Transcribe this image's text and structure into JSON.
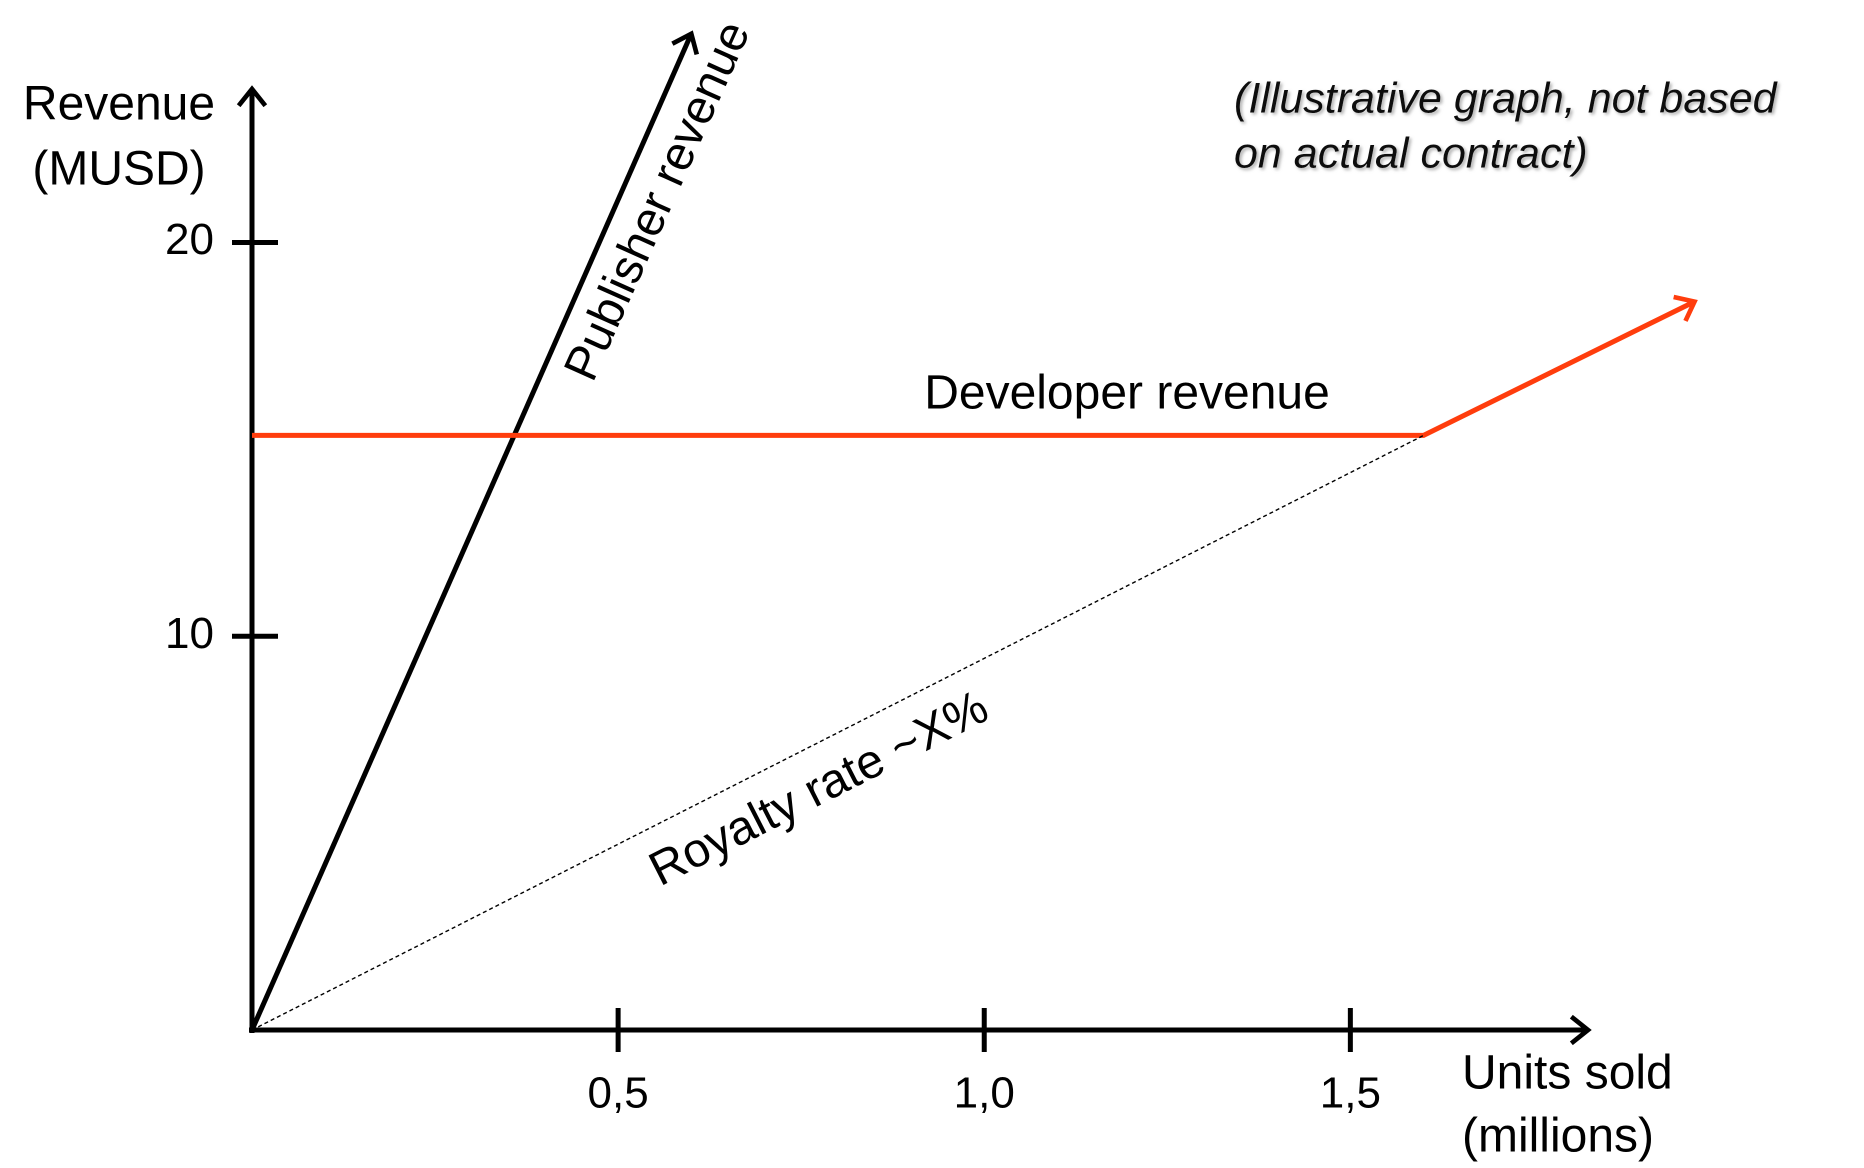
{
  "chart_data": {
    "type": "line",
    "ylabel": [
      "Revenue",
      "(MUSD)"
    ],
    "xlabel": [
      "Units sold",
      "(millions)"
    ],
    "annotation": [
      "(Illustrative graph, not based",
      "on actual contract)"
    ],
    "xlim": [
      0,
      1.83
    ],
    "ylim": [
      0,
      24
    ],
    "xticks": [
      {
        "value": 0.5,
        "label": "0,5"
      },
      {
        "value": 1.0,
        "label": "1,0"
      },
      {
        "value": 1.5,
        "label": "1,5"
      }
    ],
    "yticks": [
      10,
      20
    ],
    "series": [
      {
        "name": "Publisher revenue",
        "color": "#000000",
        "x": [
          0,
          0.6
        ],
        "values": [
          0,
          25.3
        ],
        "arrow": true,
        "dashed": false
      },
      {
        "name": "Developer revenue",
        "color": "#ff3d0d",
        "x": [
          0,
          1.6,
          1.97
        ],
        "values": [
          15.1,
          15.1,
          18.5
        ],
        "arrow": true,
        "dashed": false
      },
      {
        "name": "Royalty rate ~X%",
        "color": "#000000",
        "x": [
          0,
          1.6
        ],
        "values": [
          0,
          15.1
        ],
        "arrow": false,
        "dashed": true
      }
    ]
  }
}
